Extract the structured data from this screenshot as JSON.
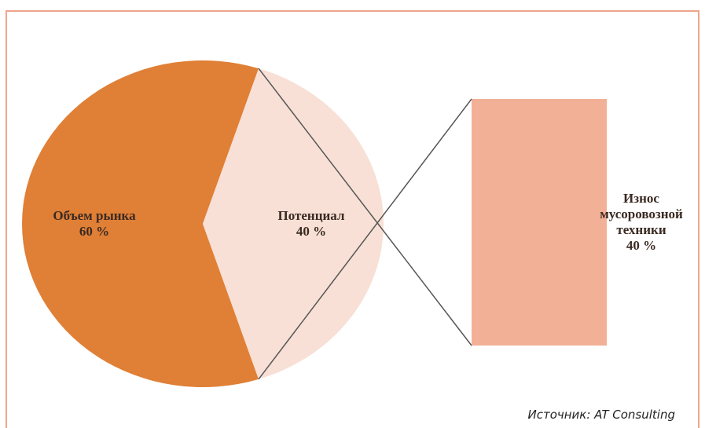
{
  "chart_data": {
    "type": "pie",
    "categories": [
      "Объем рынка",
      "Потенциал"
    ],
    "values": [
      60,
      40
    ],
    "value_labels": [
      "60 %",
      "40 %"
    ],
    "colors": [
      "#e07f36",
      "#f8e0d6"
    ],
    "bar": {
      "categories": [
        "Износ мусоровозной техники"
      ],
      "values": [
        40
      ],
      "value_labels": [
        "40 %"
      ],
      "color": "#f2b096"
    }
  },
  "source": "Источник: AT Consulting"
}
